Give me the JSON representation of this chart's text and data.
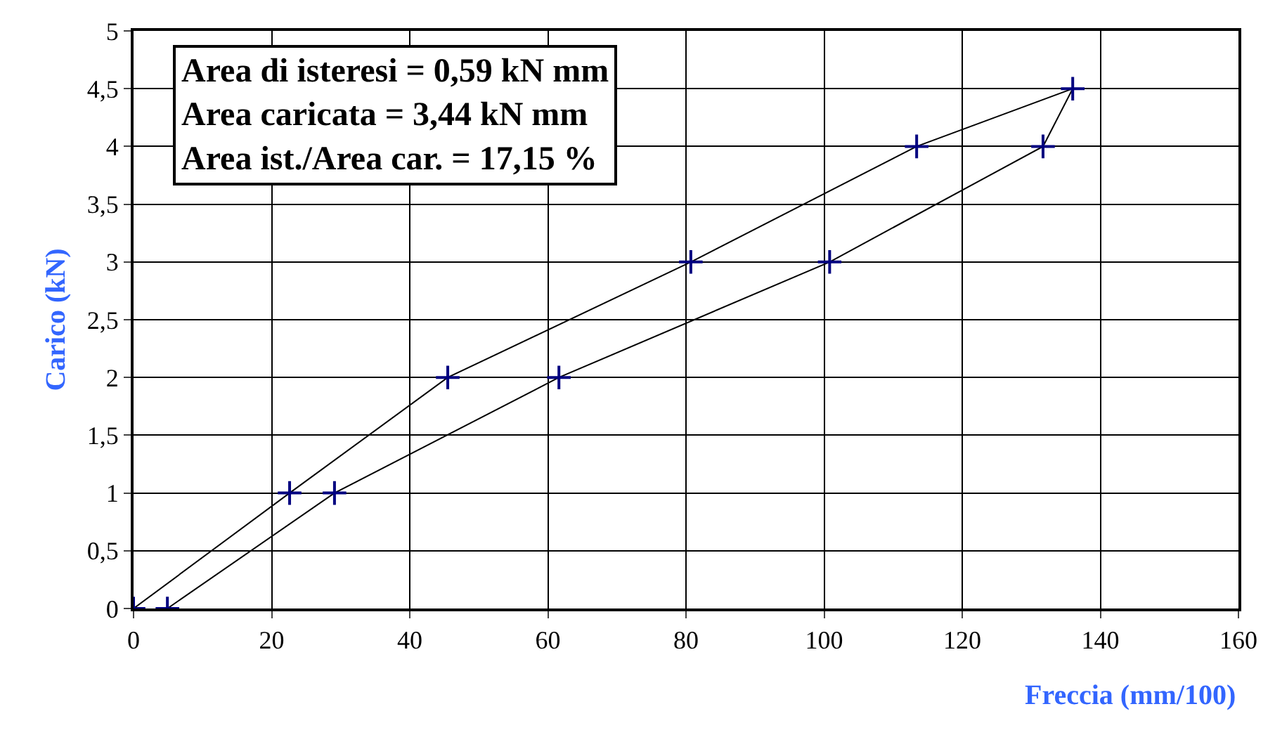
{
  "chart_data": {
    "type": "line",
    "xlabel": "Freccia (mm/100)",
    "ylabel": "Carico (kN)",
    "x": [
      0,
      22.6,
      45.5,
      80.7,
      113.4,
      136,
      131.7,
      100.8,
      61.6,
      29.1,
      4.9
    ],
    "series": [
      {
        "color": "#000080",
        "values": [
          0,
          1,
          2,
          3,
          4,
          4.5,
          4,
          3,
          2,
          1,
          0
        ]
      }
    ],
    "xlim": [
      0,
      160
    ],
    "xticks": [
      0,
      20,
      40,
      60,
      80,
      100,
      120,
      140,
      160
    ],
    "ylim": [
      0,
      5
    ],
    "yticks": [
      0,
      {
        "value": 0.5,
        "label": "0,5"
      },
      1,
      {
        "value": 1.5,
        "label": "1,5"
      },
      2,
      {
        "value": 2.5,
        "label": "2,5"
      },
      3,
      {
        "value": 3.5,
        "label": "3,5"
      },
      4,
      {
        "value": 4.5,
        "label": "4,5"
      },
      5
    ],
    "grid": true,
    "marker": "cross",
    "line_style": "solid",
    "annotations": [
      "Area di isteresi = 0,59 kN mm\nArea caricata = 3,44 kN mm\nArea ist./Area car. = 17,15 %"
    ]
  }
}
